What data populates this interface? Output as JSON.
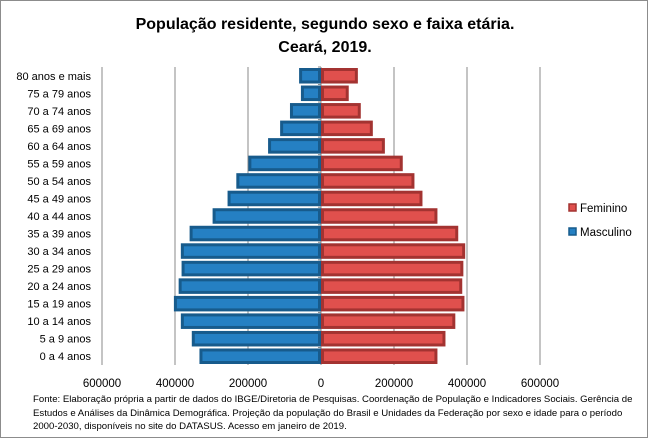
{
  "chart_data": {
    "type": "bar",
    "orientation": "horizontal",
    "subtype": "population-pyramid",
    "title": [
      "População residente, segundo sexo e faixa etária.",
      "Ceará, 2019."
    ],
    "categories": [
      "0 a 4 anos",
      "5 a 9 anos",
      "10 a 14 anos",
      "15 a 19 anos",
      "20 a 24 anos",
      "25 a 29 anos",
      "30 a 34 anos",
      "35 a 39 anos",
      "40 a 44 anos",
      "45 a 49 anos",
      "50 a 54 anos",
      "55 a 59 anos",
      "60 a 64 anos",
      "65 a 69 anos",
      "70 a 74 anos",
      "75 a 79 anos",
      "80 anos e mais"
    ],
    "series": [
      {
        "name": "Masculino",
        "color": "#2580c3",
        "border": "#175b8c",
        "values": [
          -333000,
          -354000,
          -384000,
          -403000,
          -390000,
          -382000,
          -384000,
          -360000,
          -297000,
          -256000,
          -232000,
          -199000,
          -145000,
          -112000,
          -85000,
          -55000,
          -60000
        ]
      },
      {
        "name": "Feminino",
        "color": "#e0504d",
        "border": "#a33331",
        "values": [
          319000,
          341000,
          368000,
          393000,
          387000,
          390000,
          395000,
          376000,
          319000,
          278000,
          256000,
          224000,
          175000,
          142000,
          109000,
          76000,
          101000
        ]
      }
    ],
    "xlim": [
      -600000,
      600000
    ],
    "xticks": [
      -600000,
      -400000,
      -200000,
      0,
      200000,
      400000,
      600000
    ],
    "xtick_labels": [
      "600000",
      "400000",
      "200000",
      "0",
      "200000",
      "400000",
      "600000"
    ],
    "grid": true,
    "legend": "right",
    "legend_order": [
      "Feminino",
      "Masculino"
    ]
  },
  "footnote": "Fonte:  Elaboração própria a partir de dados  do  IBGE/Diretoria de Pesquisas. Coordenação de População e Indicadores Sociais. Gerência de Estudos e Análises da Dinâmica Demográfica. Projeção da população do Brasil e Unidades da Federação por sexo e idade para o período 2000-2030, disponíveis no site do DATASUS. Acesso em  janeiro de 2019."
}
